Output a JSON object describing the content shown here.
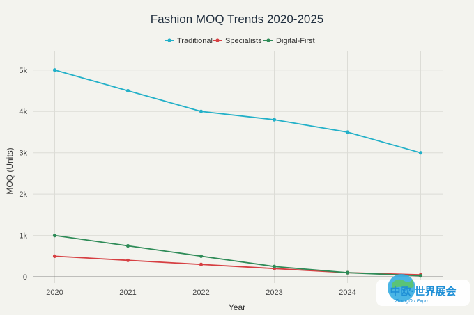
{
  "chart_data": {
    "type": "line",
    "title": "Fashion MOQ Trends 2020-2025",
    "xlabel": "Year",
    "ylabel": "MOQ (Units)",
    "x": [
      2020,
      2021,
      2022,
      2023,
      2024,
      2025
    ],
    "x_tick_labels": [
      "2020",
      "2021",
      "2022",
      "2023",
      "2024"
    ],
    "y_ticks": [
      0,
      1000,
      2000,
      3000,
      4000,
      5000
    ],
    "y_tick_labels": [
      "0",
      "1k",
      "2k",
      "3k",
      "4k",
      "5k"
    ],
    "ylim": [
      -150,
      5450
    ],
    "grid": true,
    "legend_position": "top-center",
    "series": [
      {
        "name": "Traditional",
        "color": "#22b0c8",
        "values": [
          5000,
          4500,
          4000,
          3800,
          3500,
          3000
        ]
      },
      {
        "name": "Specialists",
        "color": "#d63f42",
        "values": [
          500,
          400,
          300,
          200,
          100,
          50
        ]
      },
      {
        "name": "Digital-First",
        "color": "#2e8b57",
        "values": [
          1000,
          750,
          500,
          250,
          100,
          25
        ]
      }
    ]
  },
  "watermark": {
    "text": "中欧·世界展会",
    "subtext": "ZhongOu Expo"
  }
}
